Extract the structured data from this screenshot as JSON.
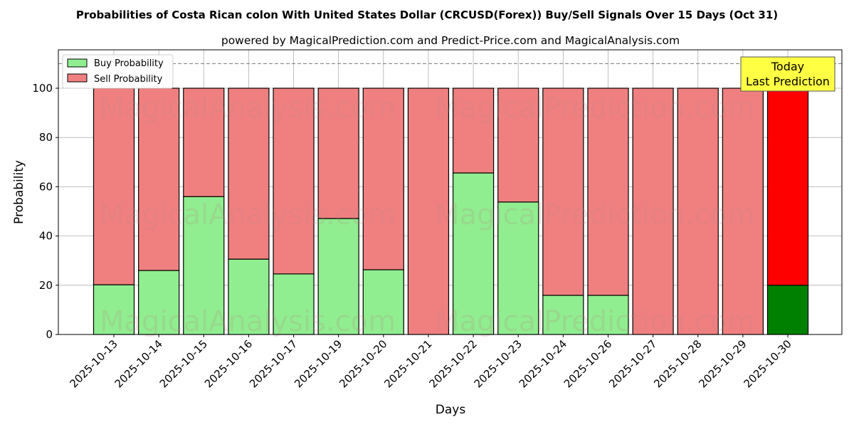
{
  "chart_data": {
    "type": "bar",
    "title": "Probabilities of Costa Rican colon With United States Dollar (CRCUSD(Forex)) Buy/Sell Signals Over 15 Days (Oct 31)",
    "subtitle": "powered by MagicalPrediction.com and Predict-Price.com and MagicalAnalysis.com",
    "xlabel": "Days",
    "ylabel": "Probability",
    "ylim": [
      0,
      115.6
    ],
    "yticks": [
      0,
      20,
      40,
      60,
      80,
      100
    ],
    "grid": true,
    "legend_placement": "top-left",
    "categories": [
      "2025-10-13",
      "2025-10-14",
      "2025-10-15",
      "2025-10-16",
      "2025-10-17",
      "2025-10-19",
      "2025-10-20",
      "2025-10-21",
      "2025-10-22",
      "2025-10-23",
      "2025-10-24",
      "2025-10-26",
      "2025-10-27",
      "2025-10-28",
      "2025-10-29",
      "2025-10-30"
    ],
    "series": [
      {
        "name": "Buy Probability",
        "color": "#90ee90",
        "values": [
          20.2,
          26,
          56,
          30.6,
          24.6,
          47.1,
          26.3,
          0,
          65.6,
          53.8,
          15.9,
          15.9,
          0,
          0,
          0,
          20
        ]
      },
      {
        "name": "Sell Probability",
        "color": "#f08080",
        "values": [
          79.8,
          74,
          44,
          69.4,
          75.4,
          52.9,
          73.7,
          100,
          34.4,
          46.2,
          84.1,
          84.1,
          100,
          100,
          100,
          80
        ]
      }
    ],
    "highlight": {
      "buy_color": "#008000",
      "sell_color": "#ff0000",
      "index": 15
    },
    "reference_line": 110,
    "annotation": "Today\nLast Prediction",
    "annotation_lines": [
      "Today",
      "Last Prediction"
    ],
    "watermarks": [
      "MagicalAnalysis.com",
      "MagicalPrediction.com"
    ]
  }
}
